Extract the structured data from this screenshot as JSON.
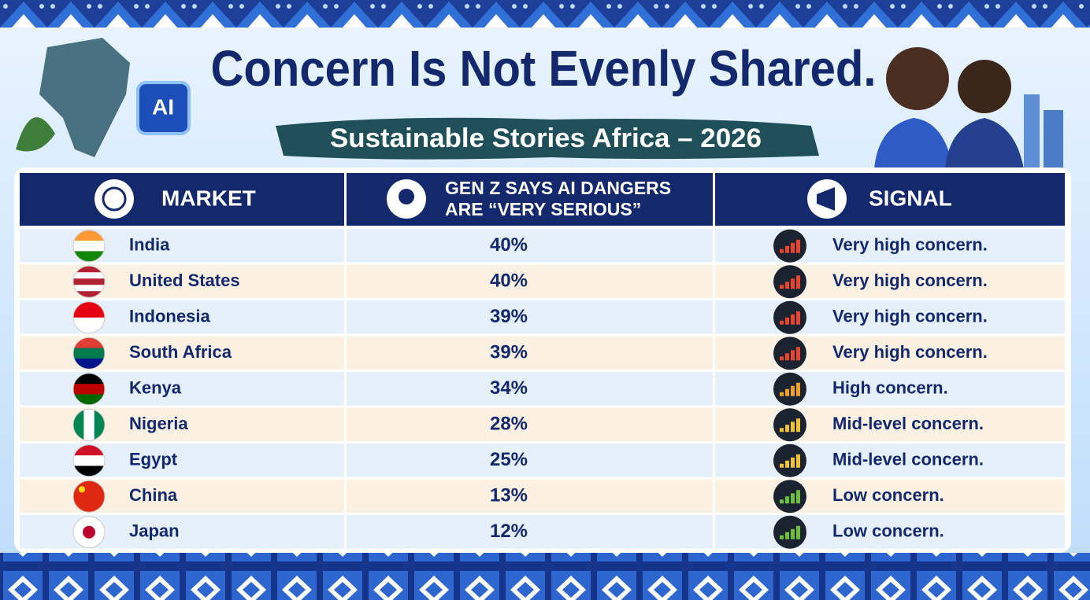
{
  "header": {
    "title": "Concern Is Not Evenly Shared.",
    "subtitle": "Sustainable Stories Africa – 2026",
    "badge": "AI"
  },
  "table": {
    "columns": [
      "MARKET",
      [
        "GEN Z SAYS AI DANGERS",
        "ARE “VERY SERIOUS”"
      ],
      "SIGNAL"
    ],
    "rows": [
      [
        "India",
        "40%",
        "Very high concern."
      ],
      [
        "United States",
        "40%",
        "Very high concern."
      ],
      [
        "Indonesia",
        "39%",
        "Very high concern."
      ],
      [
        "South Africa",
        "39%",
        "Very high concern."
      ],
      [
        "Kenya",
        "34%",
        "High concern."
      ],
      [
        "Nigeria",
        "28%",
        "Mid-level concern."
      ],
      [
        "Egypt",
        "25%",
        "Mid-level concern."
      ],
      [
        "China",
        "13%",
        "Low concern."
      ],
      [
        "Japan",
        "12%",
        "Low concern."
      ]
    ]
  }
}
